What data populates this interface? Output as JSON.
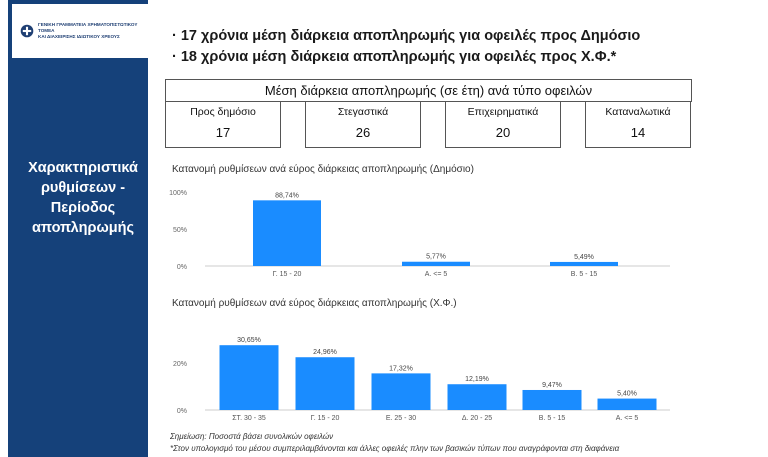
{
  "sidebar": {
    "org_line1": "ΓΕΝΙΚΗ ΓΡΑΜΜΑΤΕΙΑ ΧΡΗΜΑΤΟΠΙΣΤΩΤΙΚΟΥ ΤΟΜΕΑ",
    "org_line2": "ΚΑΙ ΔΙΑΧΕΙΡΙΣΗΣ ΙΔΙΩΤΙΚΟΥ ΧΡΕΟΥΣ",
    "title_lines": [
      "Χαρακτηριστικά",
      "ρυθμίσεων -",
      "Περίοδος",
      "αποπληρωμής"
    ],
    "color": "#15417a"
  },
  "bullets": [
    "17 χρόνια μέση διάρκεια αποπληρωμής για οφειλές προς Δημόσιο",
    "18 χρόνια μέση διάρκεια αποπληρωμής για οφειλές προς Χ.Φ.*"
  ],
  "summary": {
    "title": "Μέση διάρκεια αποπληρωμής (σε έτη) ανά τύπο οφειλών",
    "cards": [
      {
        "label": "Προς δημόσιο",
        "value": "17"
      },
      {
        "label": "Στεγαστικά",
        "value": "26"
      },
      {
        "label": "Επιχειρηματικά",
        "value": "20"
      },
      {
        "label": "Καταναλωτικά",
        "value": "14"
      }
    ]
  },
  "chart_data": [
    {
      "type": "bar",
      "title": "Κατανομή ρυθμίσεων ανά εύρος διάρκειας αποπληρωμής (Δημόσιο)",
      "categories": [
        "Γ. 15 - 20",
        "Α. <= 5",
        "Β. 5 - 15"
      ],
      "values": [
        88.74,
        5.77,
        5.49
      ],
      "value_labels": [
        "88,74%",
        "5,77%",
        "5,49%"
      ],
      "yticks": [
        "100%",
        "50%",
        "0%"
      ],
      "ylim": [
        0,
        100
      ],
      "bar_color": "#1a8cff",
      "grid": false
    },
    {
      "type": "bar",
      "title": "Κατανομή ρυθμίσεων ανά εύρος διάρκειας αποπληρωμής (Χ.Φ.)",
      "categories": [
        "ΣΤ. 30 - 35",
        "Γ. 15 - 20",
        "Ε. 25 - 30",
        "Δ. 20 - 25",
        "Β. 5 - 15",
        "Α. <= 5"
      ],
      "values": [
        30.65,
        24.96,
        17.32,
        12.19,
        9.47,
        5.4
      ],
      "value_labels": [
        "30,65%",
        "24,96%",
        "17,32%",
        "12,19%",
        "9,47%",
        "5,40%"
      ],
      "yticks": [
        "20%",
        "0%"
      ],
      "ylim": [
        0,
        35
      ],
      "bar_color": "#1a8cff",
      "grid": false
    }
  ],
  "notes": [
    "Σημείωση: Ποσοστά βάσει συνολικών οφειλών",
    "*Στον υπολογισμό του μέσου συμπεριλαμβάνονται και άλλες οφειλές πλην των βασικών τύπων που αναγράφονται στη διαφάνεια"
  ]
}
